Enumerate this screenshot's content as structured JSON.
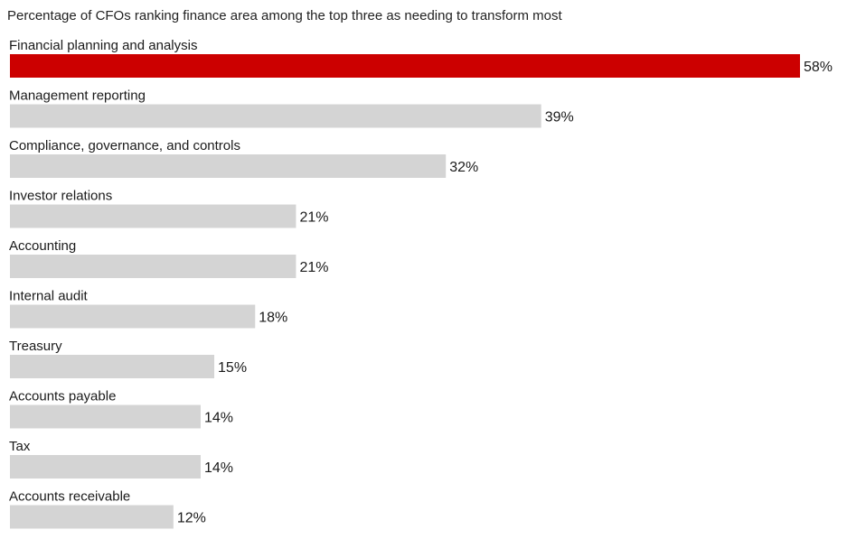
{
  "chart_data": {
    "type": "bar",
    "orientation": "horizontal",
    "title": "Percentage of CFOs ranking finance area among the top three as needing to transform most",
    "categories": [
      "Financial planning and analysis",
      "Management reporting",
      "Compliance, governance, and controls",
      "Investor relations",
      "Accounting",
      "Internal audit",
      "Treasury",
      "Accounts payable",
      "Tax",
      "Accounts receivable"
    ],
    "values": [
      58,
      39,
      32,
      21,
      21,
      18,
      15,
      14,
      14,
      12
    ],
    "value_labels": [
      "58%",
      "39%",
      "32%",
      "21%",
      "21%",
      "18%",
      "15%",
      "14%",
      "14%",
      "12%"
    ],
    "value_suffix": "%",
    "highlight_index": 0,
    "colors": {
      "highlight": "#cc0000",
      "default": "#d4d4d4"
    },
    "xlim": [
      0,
      58
    ],
    "grid": false,
    "legend": "none"
  }
}
